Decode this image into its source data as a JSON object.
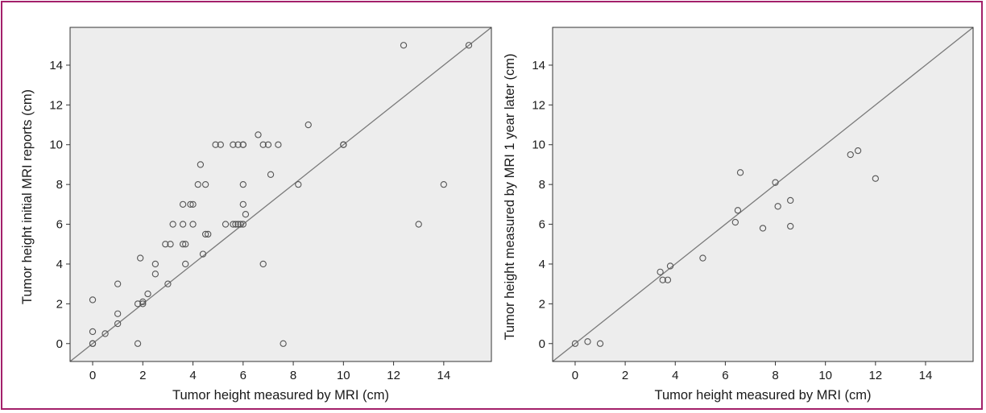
{
  "colors": {
    "frame_border": "#a3206a",
    "plot_background": "#ededed",
    "marker_edge": "#555555",
    "reference_line": "#7a7a7a"
  },
  "chart_data": [
    {
      "type": "scatter",
      "title": "",
      "xlabel": "Tumor height measured by MRI (cm)",
      "ylabel": "Tumor height initial MRI reports (cm)",
      "xlim": [
        -0.9,
        15.9
      ],
      "ylim": [
        -0.9,
        15.9
      ],
      "xticks": [
        0,
        2,
        4,
        6,
        8,
        10,
        12,
        14
      ],
      "yticks": [
        0,
        2,
        4,
        6,
        8,
        10,
        12,
        14
      ],
      "reference_line": "y = x",
      "grid": false,
      "points": [
        [
          0,
          0
        ],
        [
          0,
          0
        ],
        [
          0,
          0.6
        ],
        [
          0,
          2.2
        ],
        [
          0.5,
          0.5
        ],
        [
          1,
          1
        ],
        [
          1,
          1.5
        ],
        [
          1,
          3
        ],
        [
          1.8,
          0
        ],
        [
          1.8,
          2
        ],
        [
          1.9,
          4.3
        ],
        [
          2,
          2
        ],
        [
          2,
          2.1
        ],
        [
          2.2,
          2.5
        ],
        [
          2.5,
          3.5
        ],
        [
          2.5,
          4
        ],
        [
          2.9,
          5
        ],
        [
          3,
          3
        ],
        [
          3.1,
          5
        ],
        [
          3.2,
          6
        ],
        [
          3.6,
          5
        ],
        [
          3.6,
          6
        ],
        [
          3.6,
          7
        ],
        [
          3.7,
          4
        ],
        [
          3.7,
          5
        ],
        [
          3.9,
          7
        ],
        [
          4,
          6
        ],
        [
          4,
          7
        ],
        [
          4.2,
          8
        ],
        [
          4.3,
          9
        ],
        [
          4.4,
          4.5
        ],
        [
          4.5,
          5.5
        ],
        [
          4.5,
          8
        ],
        [
          4.6,
          5.5
        ],
        [
          4.9,
          10
        ],
        [
          5.1,
          10
        ],
        [
          5.3,
          6
        ],
        [
          5.6,
          6
        ],
        [
          5.6,
          10
        ],
        [
          5.7,
          6
        ],
        [
          5.8,
          6
        ],
        [
          5.8,
          10
        ],
        [
          5.9,
          6
        ],
        [
          6,
          6
        ],
        [
          6,
          7
        ],
        [
          6,
          8
        ],
        [
          6,
          10
        ],
        [
          6,
          10
        ],
        [
          6.1,
          6.5
        ],
        [
          6.6,
          10.5
        ],
        [
          6.8,
          4
        ],
        [
          6.8,
          10
        ],
        [
          7,
          10
        ],
        [
          7.1,
          8.5
        ],
        [
          7.4,
          10
        ],
        [
          7.6,
          0
        ],
        [
          8.2,
          8
        ],
        [
          8.6,
          11
        ],
        [
          10,
          10
        ],
        [
          10,
          10
        ],
        [
          12.4,
          15
        ],
        [
          13,
          6
        ],
        [
          14,
          8
        ],
        [
          15,
          15
        ]
      ]
    },
    {
      "type": "scatter",
      "title": "",
      "xlabel": "Tumor height measured by MRI (cm)",
      "ylabel": "Tumor height measured by MRI 1 year later (cm)",
      "xlim": [
        -0.9,
        15.9
      ],
      "ylim": [
        -0.9,
        15.9
      ],
      "xticks": [
        0,
        2,
        4,
        6,
        8,
        10,
        12,
        14
      ],
      "yticks": [
        0,
        2,
        4,
        6,
        8,
        10,
        12,
        14
      ],
      "reference_line": "y = x",
      "grid": false,
      "points": [
        [
          0,
          0
        ],
        [
          0.5,
          0.1
        ],
        [
          1,
          0
        ],
        [
          3.4,
          3.6
        ],
        [
          3.5,
          3.2
        ],
        [
          3.7,
          3.2
        ],
        [
          3.8,
          3.9
        ],
        [
          5.1,
          4.3
        ],
        [
          6.4,
          6.1
        ],
        [
          6.5,
          6.7
        ],
        [
          6.6,
          8.6
        ],
        [
          7.5,
          5.8
        ],
        [
          8,
          8.1
        ],
        [
          8.1,
          6.9
        ],
        [
          8.6,
          5.9
        ],
        [
          8.6,
          7.2
        ],
        [
          11,
          9.5
        ],
        [
          11.3,
          9.7
        ],
        [
          12,
          8.3
        ]
      ]
    }
  ]
}
